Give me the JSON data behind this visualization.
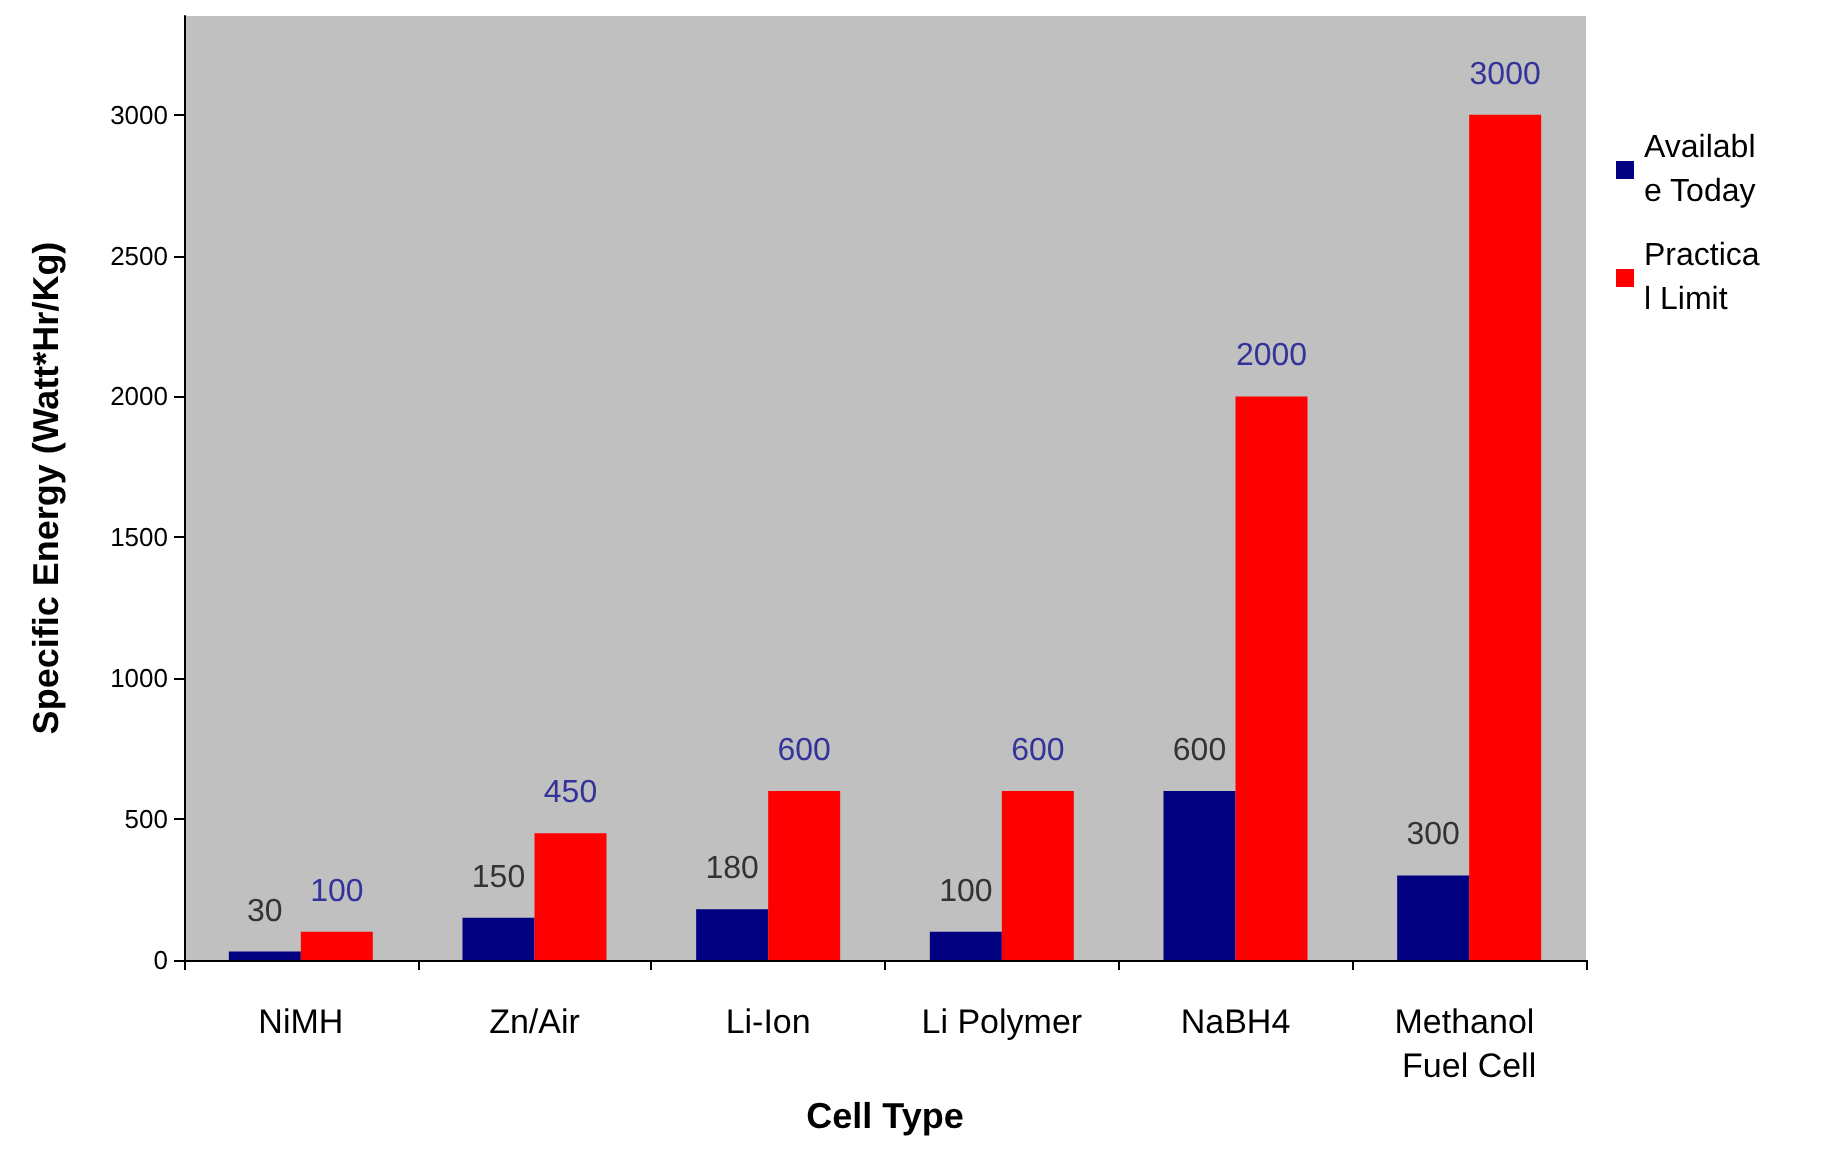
{
  "chart_data": {
    "type": "bar",
    "xlabel": "Cell Type",
    "ylabel": "Specific Energy (Watt*Hr/Kg)",
    "categories": [
      "NiMH",
      "Zn/Air",
      "Li-Ion",
      "Li Polymer",
      "NaBH4",
      "Methanol Fuel Cell"
    ],
    "series": [
      {
        "name": "Available Today",
        "color": "#000080",
        "values": [
          30,
          150,
          180,
          100,
          600,
          300
        ]
      },
      {
        "name": "Practical Limit",
        "color": "#ff0000",
        "values": [
          100,
          450,
          600,
          600,
          2000,
          3000
        ]
      }
    ],
    "ylim": [
      0,
      3350
    ],
    "yticks": [
      0,
      500,
      1000,
      1500,
      2000,
      2500,
      3000
    ],
    "grid": false,
    "legend": "top right",
    "data_labels": true
  }
}
